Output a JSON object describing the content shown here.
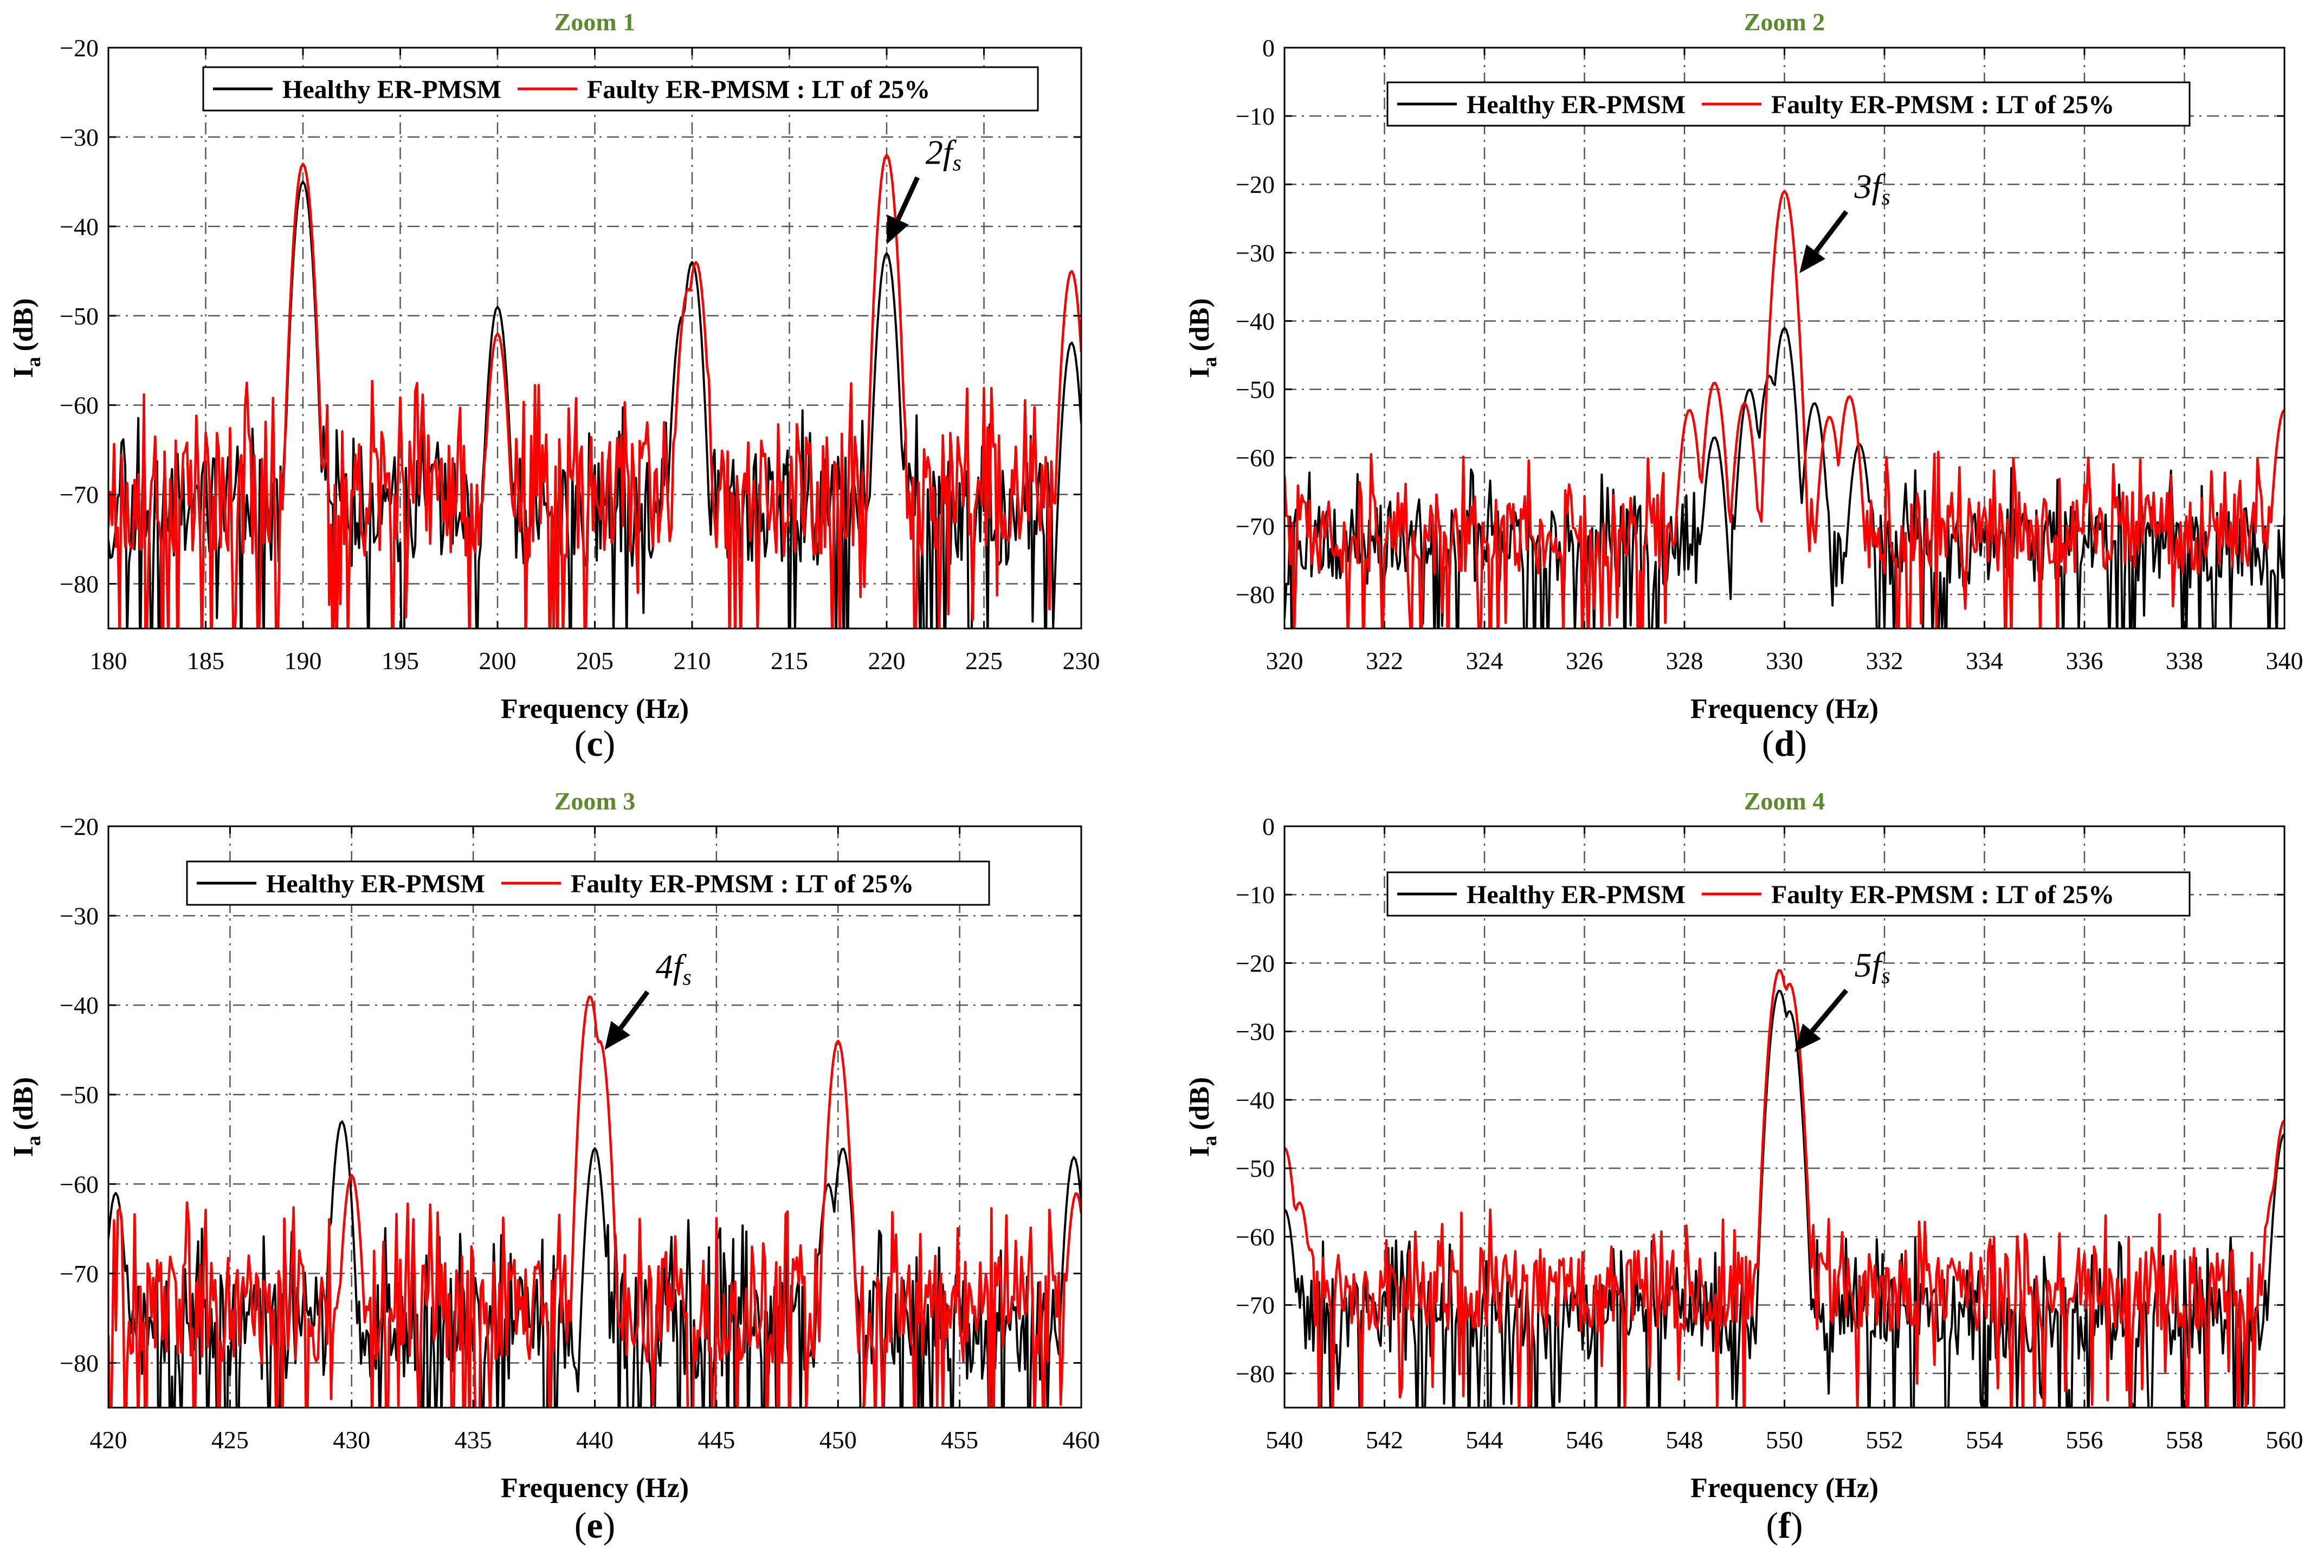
{
  "chart_data": [
    {
      "type": "line",
      "title": "Zoom 1",
      "panel_label": "(c)",
      "xlabel": "Frequency (Hz)",
      "ylabel_main": "I",
      "ylabel_sub": "a",
      "ylabel_unit": "(dB)",
      "xlim": [
        180,
        230
      ],
      "ylim": [
        -85,
        -20
      ],
      "xticks": [
        180,
        185,
        190,
        195,
        200,
        205,
        210,
        215,
        220,
        225,
        230
      ],
      "yticks": [
        -20,
        -30,
        -40,
        -50,
        -60,
        -70,
        -80
      ],
      "legend_position": "top",
      "annotation": {
        "text_main": "2f",
        "text_sub": "s",
        "x": 220,
        "y": -42,
        "text_x": 222,
        "text_y": -33
      },
      "series": [
        {
          "name": "Healthy ER-PMSM",
          "color": "#000000",
          "baseline": -72,
          "noise": 6,
          "seed": 11,
          "peaks": [
            [
              190,
              -35
            ],
            [
              200,
              -49
            ],
            [
              209.5,
              -50
            ],
            [
              210,
              -44
            ],
            [
              220,
              -43
            ],
            [
              229.5,
              -53
            ]
          ]
        },
        {
          "name": "Faulty ER-PMSM : LT of 25%",
          "color": "#ff0000",
          "baseline": -70,
          "noise": 7,
          "seed": 23,
          "peaks": [
            [
              190,
              -33
            ],
            [
              200,
              -52
            ],
            [
              209.8,
              -47
            ],
            [
              210.2,
              -44
            ],
            [
              220,
              -32
            ],
            [
              229.5,
              -45
            ]
          ]
        }
      ]
    },
    {
      "type": "line",
      "title": "Zoom 2",
      "panel_label": "(d)",
      "xlabel": "Frequency (Hz)",
      "ylabel_main": "I",
      "ylabel_sub": "a",
      "ylabel_unit": "(dB)",
      "xlim": [
        320,
        340
      ],
      "ylim": [
        -85,
        0
      ],
      "xticks": [
        320,
        322,
        324,
        326,
        328,
        330,
        332,
        334,
        336,
        338,
        340
      ],
      "yticks": [
        0,
        -10,
        -20,
        -30,
        -40,
        -50,
        -60,
        -70,
        -80
      ],
      "legend_position": "top",
      "annotation": {
        "text_main": "3f",
        "text_sub": "s",
        "x": 330.3,
        "y": -33,
        "text_x": 331.4,
        "text_y": -22
      },
      "series": [
        {
          "name": "Healthy ER-PMSM",
          "color": "#000000",
          "baseline": -73,
          "noise": 6,
          "seed": 31,
          "peaks": [
            [
              328.6,
              -57
            ],
            [
              329.3,
              -50
            ],
            [
              329.7,
              -48
            ],
            [
              330,
              -41
            ],
            [
              330.6,
              -52
            ],
            [
              331.5,
              -58
            ]
          ]
        },
        {
          "name": "Faulty ER-PMSM : LT of 25%",
          "color": "#ff0000",
          "baseline": -71,
          "noise": 6,
          "seed": 47,
          "peaks": [
            [
              328.1,
              -53
            ],
            [
              328.6,
              -49
            ],
            [
              329.2,
              -52
            ],
            [
              330,
              -21
            ],
            [
              330.9,
              -54
            ],
            [
              331.3,
              -51
            ],
            [
              340,
              -53
            ]
          ]
        }
      ]
    },
    {
      "type": "line",
      "title": "Zoom 3",
      "panel_label": "(e)",
      "xlabel": "Frequency (Hz)",
      "ylabel_main": "I",
      "ylabel_sub": "a",
      "ylabel_unit": "(dB)",
      "xlim": [
        420,
        460
      ],
      "ylim": [
        -85,
        -20
      ],
      "xticks": [
        420,
        425,
        430,
        435,
        440,
        445,
        450,
        455,
        460
      ],
      "yticks": [
        -20,
        -30,
        -40,
        -50,
        -60,
        -70,
        -80
      ],
      "legend_position": "top",
      "annotation": {
        "text_main": "4f",
        "text_sub": "s",
        "x": 440.4,
        "y": -45,
        "text_x": 442.5,
        "text_y": -37
      },
      "series": [
        {
          "name": "Healthy ER-PMSM",
          "color": "#000000",
          "baseline": -76,
          "noise": 6,
          "seed": 59,
          "peaks": [
            [
              420.3,
              -61
            ],
            [
              429.6,
              -53
            ],
            [
              440,
              -56
            ],
            [
              449.6,
              -60
            ],
            [
              450.2,
              -56
            ],
            [
              459.7,
              -57
            ]
          ]
        },
        {
          "name": "Faulty ER-PMSM : LT of 25%",
          "color": "#ff0000",
          "baseline": -74,
          "noise": 6,
          "seed": 67,
          "peaks": [
            [
              430,
              -59
            ],
            [
              439.8,
              -39
            ],
            [
              440.2,
              -44
            ],
            [
              450,
              -44
            ],
            [
              459.8,
              -61
            ]
          ]
        }
      ]
    },
    {
      "type": "line",
      "title": "Zoom 4",
      "panel_label": "(f)",
      "xlabel": "Frequency (Hz)",
      "ylabel_main": "I",
      "ylabel_sub": "a",
      "ylabel_unit": "(dB)",
      "xlim": [
        540,
        560
      ],
      "ylim": [
        -85,
        0
      ],
      "xticks": [
        540,
        542,
        544,
        546,
        548,
        550,
        552,
        554,
        556,
        558,
        560
      ],
      "yticks": [
        0,
        -10,
        -20,
        -30,
        -40,
        -50,
        -60,
        -70,
        -80
      ],
      "legend_position": "top",
      "annotation": {
        "text_main": "5f",
        "text_sub": "s",
        "x": 550.2,
        "y": -33,
        "text_x": 551.4,
        "text_y": -22
      },
      "series": [
        {
          "name": "Healthy ER-PMSM",
          "color": "#000000",
          "baseline": -72,
          "noise": 6,
          "seed": 71,
          "peaks": [
            [
              540,
              -56
            ],
            [
              549.9,
              -24
            ],
            [
              550.1,
              -27
            ],
            [
              560,
              -45
            ]
          ]
        },
        {
          "name": "Faulty ER-PMSM : LT of 25%",
          "color": "#ff0000",
          "baseline": -68,
          "noise": 6,
          "seed": 83,
          "peaks": [
            [
              540,
              -47
            ],
            [
              540.3,
              -55
            ],
            [
              549.9,
              -21
            ],
            [
              550.1,
              -23
            ],
            [
              559.8,
              -53
            ],
            [
              560,
              -43
            ]
          ]
        }
      ]
    }
  ]
}
